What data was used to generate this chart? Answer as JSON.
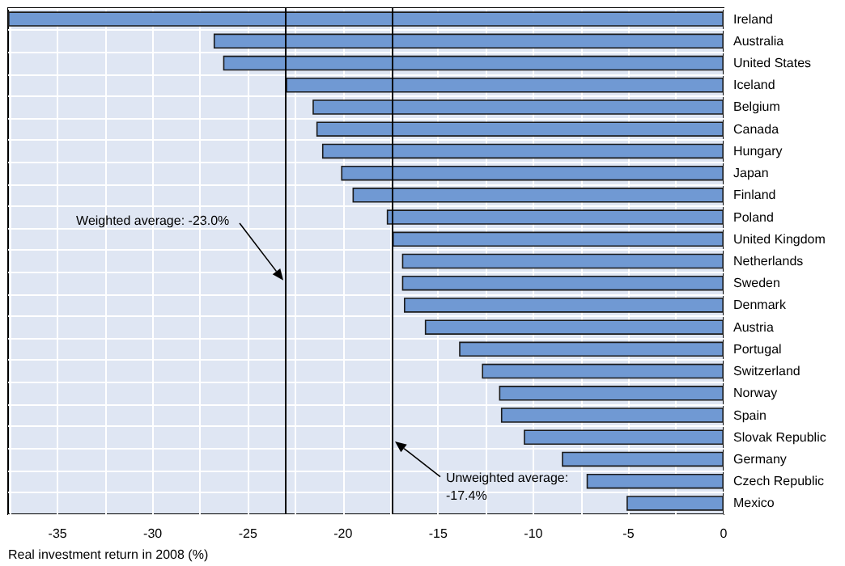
{
  "chart_data": {
    "type": "bar",
    "orientation": "horizontal",
    "xlabel": "Real investment return in 2008 (%)",
    "categories": [
      "Ireland",
      "Australia",
      "United States",
      "Iceland",
      "Belgium",
      "Canada",
      "Hungary",
      "Japan",
      "Finland",
      "Poland",
      "United Kingdom",
      "Netherlands",
      "Sweden",
      "Denmark",
      "Austria",
      "Portugal",
      "Switzerland",
      "Norway",
      "Spain",
      "Slovak Republic",
      "Germany",
      "Czech Republic",
      "Mexico"
    ],
    "values": [
      -37.6,
      -26.8,
      -26.3,
      -23.0,
      -21.6,
      -21.4,
      -21.1,
      -20.1,
      -19.5,
      -17.7,
      -17.4,
      -16.9,
      -16.9,
      -16.8,
      -15.7,
      -13.9,
      -12.7,
      -11.8,
      -11.7,
      -10.5,
      -8.5,
      -7.2,
      -5.1
    ],
    "color": "#7099d3",
    "xlim": [
      -37.6,
      0
    ],
    "xticks": [
      {
        "value": -37.5,
        "label": null
      },
      -35,
      {
        "value": -32.5,
        "label": null
      },
      -30,
      {
        "value": -27.5,
        "label": null
      },
      -25,
      {
        "value": -22.5,
        "label": null
      },
      -20,
      {
        "value": -17.5,
        "label": null
      },
      -15,
      {
        "value": -12.5,
        "label": null
      },
      -10,
      {
        "value": -7.5,
        "label": null
      },
      -5,
      {
        "value": -2.5,
        "label": null
      },
      0
    ],
    "grid": true,
    "ref_lines": [
      {
        "axis": "x",
        "value": -23.0,
        "label": "Weighted average: -23.0%"
      },
      {
        "axis": "x",
        "value": -17.4,
        "label": "Unweighted average: -17.4%"
      }
    ]
  }
}
